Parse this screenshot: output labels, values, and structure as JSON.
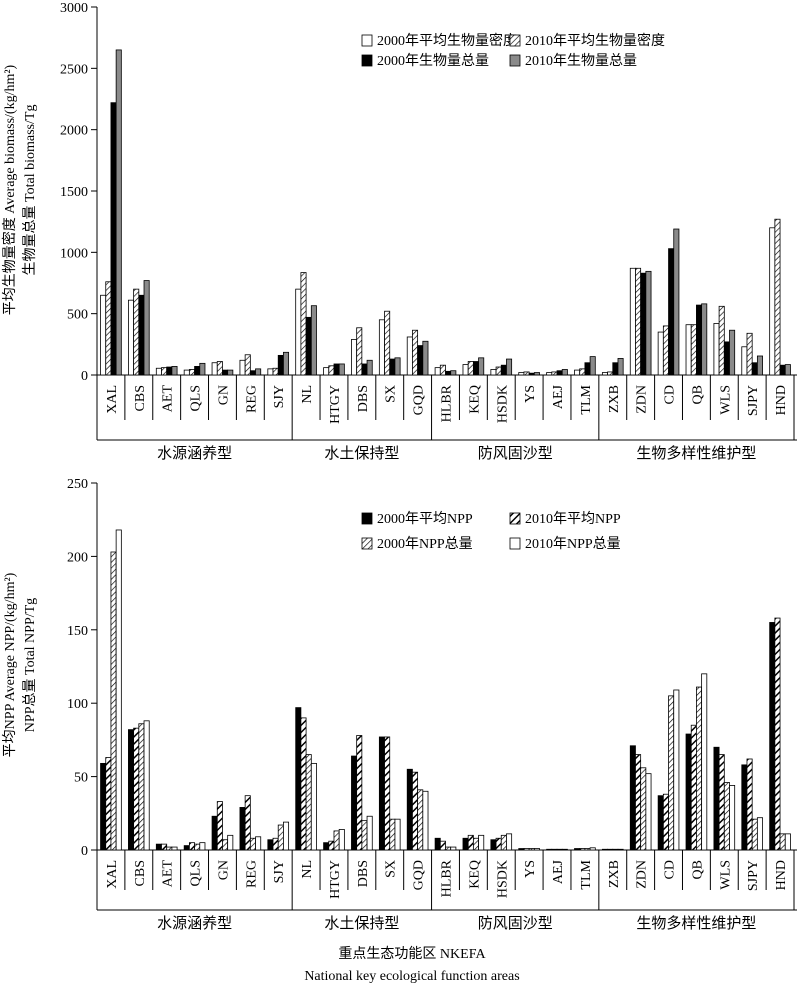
{
  "chart_data": [
    {
      "type": "bar",
      "ylabel_line1": "平均生物量密度 Average biomass/(kg/hm²)",
      "ylabel_line2": "生物量总量 Total biomass/Tg",
      "ylim": [
        0,
        3000
      ],
      "yticks": [
        "0",
        "500",
        "1000",
        "1500",
        "2000",
        "2500",
        "3000"
      ],
      "categories": [
        "XAL",
        "CBS",
        "AET",
        "QLS",
        "GN",
        "REG",
        "SJY",
        "NL",
        "HTGY",
        "DBS",
        "SX",
        "GQD",
        "HLBR",
        "KEQ",
        "HSDK",
        "YS",
        "AEJ",
        "TLM",
        "ZXB",
        "ZDN",
        "CD",
        "QB",
        "WLS",
        "SJPY",
        "HND"
      ],
      "groups": [
        {
          "label": "水源涵养型",
          "from": 0,
          "to": 6
        },
        {
          "label": "水土保持型",
          "from": 7,
          "to": 11
        },
        {
          "label": "防风固沙型",
          "from": 12,
          "to": 17
        },
        {
          "label": "生物多样性维护型",
          "from": 18,
          "to": 24
        }
      ],
      "legend": [
        {
          "name": "2000年平均生物量密度",
          "style": "white"
        },
        {
          "name": "2010年平均生物量密度",
          "style": "hatch"
        },
        {
          "name": "2000年生物量总量",
          "style": "black"
        },
        {
          "name": "2010年生物量总量",
          "style": "gray"
        }
      ],
      "series": [
        {
          "name": "2000年平均生物量密度",
          "style": "white",
          "values": [
            650,
            610,
            55,
            40,
            100,
            120,
            50,
            700,
            60,
            290,
            450,
            310,
            60,
            85,
            45,
            20,
            20,
            40,
            20,
            870,
            350,
            410,
            420,
            230,
            1200
          ]
        },
        {
          "name": "2010年平均生物量密度",
          "style": "hatch",
          "values": [
            760,
            700,
            60,
            45,
            110,
            165,
            55,
            835,
            75,
            385,
            520,
            365,
            80,
            110,
            65,
            25,
            25,
            50,
            25,
            870,
            400,
            410,
            560,
            340,
            1270
          ]
        },
        {
          "name": "2000年生物量总量",
          "style": "black",
          "values": [
            2220,
            650,
            65,
            70,
            40,
            35,
            160,
            470,
            90,
            90,
            130,
            240,
            30,
            110,
            80,
            15,
            35,
            100,
            100,
            830,
            1030,
            570,
            270,
            100,
            80
          ]
        },
        {
          "name": "2010年生物量总量",
          "style": "gray",
          "values": [
            2650,
            770,
            70,
            95,
            40,
            50,
            185,
            565,
            90,
            120,
            140,
            275,
            35,
            140,
            130,
            20,
            45,
            150,
            135,
            845,
            1190,
            580,
            365,
            155,
            85
          ]
        }
      ]
    },
    {
      "type": "bar",
      "ylabel_line1": "平均NPP  Average NPP/(kg/hm²)",
      "ylabel_line2": "NPP总量 Total NPP/Tg",
      "ylim": [
        0,
        250
      ],
      "yticks": [
        "0",
        "50",
        "100",
        "150",
        "200",
        "250"
      ],
      "categories": [
        "XAL",
        "CBS",
        "AET",
        "QLS",
        "GN",
        "REG",
        "SJY",
        "NL",
        "HTGY",
        "DBS",
        "SX",
        "GQD",
        "HLBR",
        "KEQ",
        "HSDK",
        "YS",
        "AEJ",
        "TLM",
        "ZXB",
        "ZDN",
        "CD",
        "QB",
        "WLS",
        "SJPY",
        "HND"
      ],
      "groups": [
        {
          "label": "水源涵养型",
          "from": 0,
          "to": 6
        },
        {
          "label": "水土保持型",
          "from": 7,
          "to": 11
        },
        {
          "label": "防风固沙型",
          "from": 12,
          "to": 17
        },
        {
          "label": "生物多样性维护型",
          "from": 18,
          "to": 24
        }
      ],
      "xlabel_line1": "重点生态功能区 NKEFA",
      "xlabel_line2": "National key ecological function areas",
      "legend": [
        {
          "name": "2000年平均NPP",
          "style": "black"
        },
        {
          "name": "2010年平均NPP",
          "style": "hatchbold"
        },
        {
          "name": "2000年NPP总量",
          "style": "hatch"
        },
        {
          "name": "2010年NPP总量",
          "style": "white"
        }
      ],
      "series": [
        {
          "name": "2000年平均NPP",
          "style": "black",
          "values": [
            59,
            82,
            4,
            3,
            23,
            29,
            7,
            97,
            5,
            64,
            77,
            55,
            8,
            8,
            7,
            1,
            0.5,
            1,
            0.5,
            71,
            37,
            79,
            70,
            58,
            155
          ]
        },
        {
          "name": "2010年平均NPP",
          "style": "hatchbold",
          "values": [
            63,
            83,
            4,
            5,
            33,
            37,
            8,
            90,
            6,
            78,
            77,
            53,
            6,
            10,
            8,
            1,
            0.5,
            1,
            0.5,
            65,
            38,
            85,
            65,
            62,
            158
          ]
        },
        {
          "name": "2000年NPP总量",
          "style": "hatch",
          "values": [
            203,
            86,
            2,
            4,
            7,
            8,
            17,
            65,
            13,
            20,
            21,
            41,
            2,
            8,
            10,
            1,
            0.5,
            1,
            0.5,
            56,
            105,
            111,
            46,
            21,
            11
          ]
        },
        {
          "name": "2010年NPP总量",
          "style": "white",
          "values": [
            218,
            88,
            2,
            5,
            10,
            9,
            19,
            59,
            14,
            23,
            21,
            40,
            2,
            10,
            11,
            1,
            0.5,
            1.5,
            0.5,
            52,
            109,
            120,
            44,
            22,
            11
          ]
        }
      ]
    }
  ]
}
